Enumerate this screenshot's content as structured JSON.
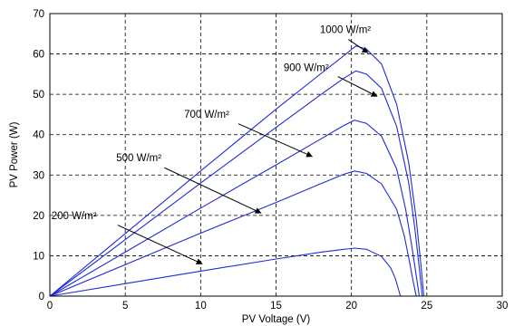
{
  "chart_data": {
    "type": "line",
    "xlabel": "PV Voltage (V)",
    "ylabel": "PV Power (W)",
    "xlim": [
      0,
      30
    ],
    "ylim": [
      0,
      70
    ],
    "xticks": [
      0,
      5,
      10,
      15,
      20,
      25,
      30
    ],
    "yticks": [
      0,
      10,
      20,
      30,
      40,
      50,
      60,
      70
    ],
    "grid": true,
    "line_color": "#1f2bd6",
    "series": [
      {
        "name": "1000 W/m²",
        "x": [
          0,
          5,
          10,
          15,
          18,
          19.5,
          20.3,
          21,
          22,
          23,
          23.8,
          24.3,
          24.6,
          24.8
        ],
        "y": [
          0,
          15.5,
          31,
          46.3,
          55.2,
          59.6,
          62,
          61.2,
          57.5,
          47.5,
          33,
          19,
          8,
          0
        ]
      },
      {
        "name": "900 W/m²",
        "x": [
          0,
          5,
          10,
          15,
          18,
          19.5,
          20.3,
          21,
          22,
          23,
          23.8,
          24.2,
          24.5,
          24.7
        ],
        "y": [
          0,
          14,
          28,
          41.8,
          50,
          54,
          55.8,
          55,
          51.5,
          42,
          28,
          17,
          7,
          0
        ]
      },
      {
        "name": "700 W/m²",
        "x": [
          0,
          5,
          10,
          15,
          18,
          19.5,
          20.2,
          21,
          22,
          23,
          23.6,
          24,
          24.3,
          24.5
        ],
        "y": [
          0,
          10.9,
          21.8,
          32.5,
          39,
          42.3,
          43.6,
          42.8,
          39.6,
          31.5,
          21.5,
          12.5,
          5,
          0
        ]
      },
      {
        "name": "500 W/m²",
        "x": [
          0,
          5,
          10,
          15,
          18,
          19.5,
          20.2,
          21,
          22,
          23,
          23.5,
          23.8,
          24.1,
          24.3
        ],
        "y": [
          0,
          7.8,
          15.6,
          23.2,
          27.9,
          30.2,
          31,
          30.4,
          27.8,
          21.5,
          15,
          9.5,
          3.5,
          0
        ]
      },
      {
        "name": "200 W/m²",
        "x": [
          0,
          5,
          10,
          15,
          18,
          19.5,
          20.2,
          21,
          22,
          22.6,
          22.9,
          23.1,
          23.25
        ],
        "y": [
          0,
          3.1,
          6.2,
          9.2,
          10.9,
          11.6,
          11.9,
          11.6,
          9.8,
          7,
          4.5,
          2,
          0
        ]
      }
    ],
    "annotations": [
      {
        "text": "1000 W/m²",
        "label_x": 19.6,
        "label_y": 65.2,
        "arrow_from": [
          19.8,
          63.6
        ],
        "arrow_to": [
          21.1,
          60.3
        ]
      },
      {
        "text": "900 W/m²",
        "label_x": 17.0,
        "label_y": 55.8,
        "arrow_from": [
          19.1,
          54.4
        ],
        "arrow_to": [
          21.7,
          49.5
        ]
      },
      {
        "text": "700 W/m²",
        "label_x": 10.4,
        "label_y": 44.2,
        "arrow_from": [
          12.5,
          42.7
        ],
        "arrow_to": [
          17.4,
          34.6
        ]
      },
      {
        "text": "500 W/m²",
        "label_x": 5.9,
        "label_y": 33.4,
        "arrow_from": [
          7.6,
          31.8
        ],
        "arrow_to": [
          14.0,
          20.6
        ]
      },
      {
        "text": "200 W/m²",
        "label_x": 1.6,
        "label_y": 19.1,
        "arrow_from": [
          4.5,
          17.6
        ],
        "arrow_to": [
          10.1,
          8.0
        ]
      }
    ]
  }
}
